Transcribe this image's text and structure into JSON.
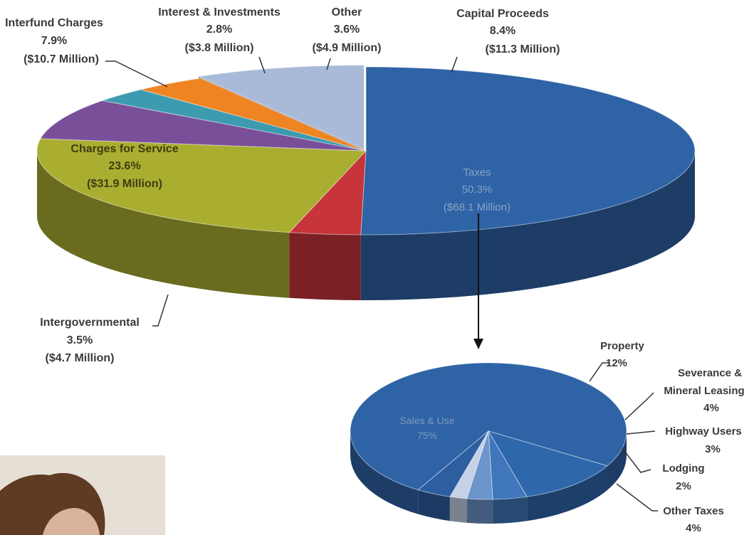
{
  "chart_data": [
    {
      "type": "pie",
      "categories": [
        "Taxes",
        "Intergovernmental",
        "Charges for Service",
        "Interfund Charges",
        "Interest & Investments",
        "Other",
        "Capital Proceeds"
      ],
      "values": [
        50.3,
        3.5,
        23.6,
        7.9,
        2.8,
        3.6,
        8.4
      ],
      "amounts": [
        "($68.1 Million)",
        "($4.7 Million)",
        "($31.9 Million)",
        "($10.7 Million)",
        "($3.8 Million)",
        "($4.9 Million)",
        "($11.3 Million)"
      ],
      "labels": [
        "50.3%",
        "3.5%",
        "23.6%",
        "7.9%",
        "2.8%",
        "3.6%",
        "8.4%"
      ],
      "colors": [
        "#2e63a6",
        "#c7343a",
        "#a9ae31",
        "#7a4f9a",
        "#3d9bb0",
        "#ef8423",
        "#a9b9d8"
      ],
      "title": ""
    },
    {
      "type": "pie",
      "categories": [
        "Sales & Use",
        "Property",
        "Severance &",
        "Highway Users",
        "Lodging",
        "Other Taxes"
      ],
      "category_line2": [
        "",
        "",
        "Mineral Leasing",
        "",
        "",
        ""
      ],
      "values": [
        75,
        12,
        4,
        3,
        2,
        4
      ],
      "labels": [
        "75%",
        "12%",
        "4%",
        "3%",
        "2%",
        "4%"
      ],
      "colors": [
        "#2e63a6",
        "#2f67ab",
        "#3f77ba",
        "#6c95cc",
        "#c4d1e6",
        "#2d5e9f"
      ],
      "title": ""
    }
  ]
}
